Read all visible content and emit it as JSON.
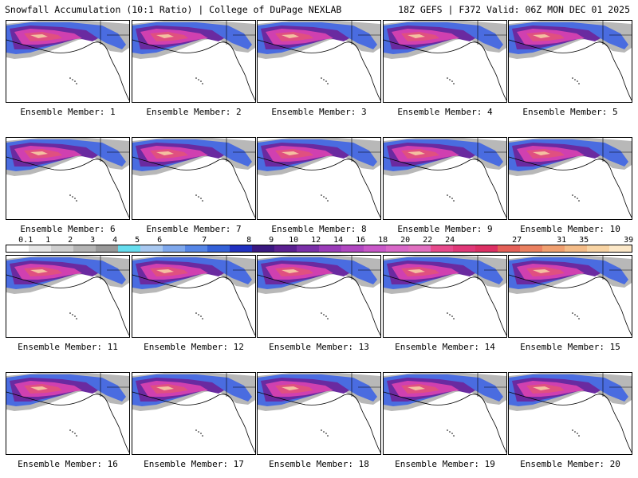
{
  "header": {
    "title_left": "Snowfall Accumulation (10:1 Ratio) | College of DuPage NEXLAB",
    "title_right": "18Z GEFS | F372 Valid: 06Z MON DEC 01 2025"
  },
  "members": [
    {
      "label": "Ensemble Member: 1"
    },
    {
      "label": "Ensemble Member: 2"
    },
    {
      "label": "Ensemble Member: 3"
    },
    {
      "label": "Ensemble Member: 4"
    },
    {
      "label": "Ensemble Member: 5"
    },
    {
      "label": "Ensemble Member: 6"
    },
    {
      "label": "Ensemble Member: 7"
    },
    {
      "label": "Ensemble Member: 8"
    },
    {
      "label": "Ensemble Member: 9"
    },
    {
      "label": "Ensemble Member: 10"
    },
    {
      "label": "Ensemble Member: 11"
    },
    {
      "label": "Ensemble Member: 12"
    },
    {
      "label": "Ensemble Member: 13"
    },
    {
      "label": "Ensemble Member: 14"
    },
    {
      "label": "Ensemble Member: 15"
    },
    {
      "label": "Ensemble Member: 16"
    },
    {
      "label": "Ensemble Member: 17"
    },
    {
      "label": "Ensemble Member: 18"
    },
    {
      "label": "Ensemble Member: 19"
    },
    {
      "label": "Ensemble Member: 20"
    }
  ],
  "legend": {
    "labels": [
      "0.1",
      "1",
      "2",
      "3",
      "4",
      "5",
      "6",
      "7",
      "8",
      "9",
      "10",
      "12",
      "14",
      "16",
      "18",
      "20",
      "22",
      "24",
      "27",
      "31",
      "35",
      "39"
    ],
    "colors": [
      "#ffffff",
      "#e6e6e6",
      "#cfcfcf",
      "#b4b4b4",
      "#999999",
      "#66ddee",
      "#a8c8f0",
      "#7fa8ec",
      "#5686e6",
      "#3461d8",
      "#2030c0",
      "#3a1880",
      "#5a2090",
      "#7a30a8",
      "#9a3cb8",
      "#b048c0",
      "#c858c8",
      "#d868c8",
      "#e070c0",
      "#e64a8c",
      "#e03878",
      "#dc3064",
      "#e46058",
      "#ea8060",
      "#f0a070",
      "#f4bc88",
      "#f8d4a4",
      "#fce8c8"
    ],
    "tick_index": [
      0,
      1,
      2,
      3,
      4,
      5,
      6,
      8,
      10,
      11,
      12,
      13,
      14,
      15,
      16,
      17,
      18,
      19,
      22,
      24,
      25,
      27
    ]
  },
  "colors": {
    "ocean": "#ffffff",
    "land": "#ffffff",
    "border": "#000000",
    "snow_light": "#b8b8b8",
    "snow_blue": "#4a6ce0",
    "snow_purple": "#6a2aa0",
    "snow_magenta": "#d040b0",
    "snow_pink": "#e05080",
    "snow_peach": "#f4c0a0"
  }
}
